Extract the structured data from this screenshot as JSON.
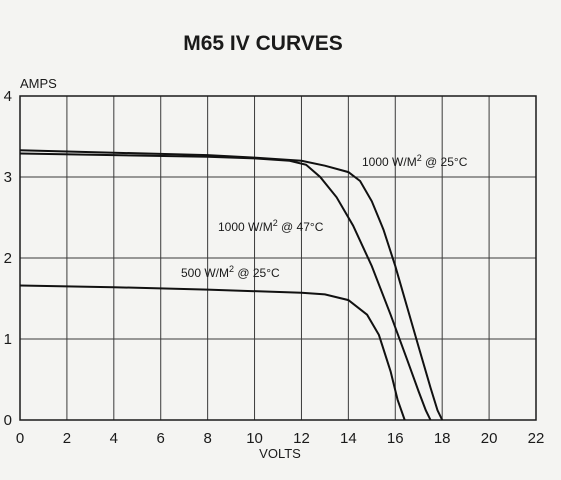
{
  "chart_data": {
    "type": "line",
    "title": "M65 IV CURVES",
    "xlabel": "VOLTS",
    "ylabel": "AMPS",
    "xlim": [
      0,
      22
    ],
    "ylim": [
      0,
      4
    ],
    "x_ticks": [
      "0",
      "2",
      "4",
      "6",
      "8",
      "10",
      "12",
      "14",
      "16",
      "18",
      "20",
      "22"
    ],
    "y_ticks": [
      "0",
      "1",
      "2",
      "3",
      "4"
    ],
    "grid": true,
    "series": [
      {
        "name": "1000 W/M² @ 25°C",
        "label_parts": [
          "1000 W/M",
          "2",
          " @ 25°C"
        ],
        "x": [
          0,
          4,
          8,
          10,
          12,
          13,
          14,
          14.5,
          15,
          15.5,
          16,
          16.5,
          17,
          17.5,
          17.8,
          18
        ],
        "y": [
          3.33,
          3.3,
          3.27,
          3.24,
          3.2,
          3.14,
          3.06,
          2.95,
          2.7,
          2.35,
          1.9,
          1.4,
          0.9,
          0.4,
          0.12,
          0
        ]
      },
      {
        "name": "1000 W/M² @ 47°C",
        "label_parts": [
          "1000 W/M",
          "2",
          " @ 47°C"
        ],
        "x": [
          0,
          4,
          8,
          10,
          11.5,
          12.2,
          12.8,
          13.5,
          14.2,
          15,
          15.8,
          16.5,
          17,
          17.3,
          17.5
        ],
        "y": [
          3.29,
          3.27,
          3.25,
          3.23,
          3.2,
          3.15,
          3.0,
          2.75,
          2.4,
          1.9,
          1.3,
          0.75,
          0.35,
          0.12,
          0
        ]
      },
      {
        "name": "500 W/M² @ 25°C",
        "label_parts": [
          "500 W/M",
          "2",
          " @ 25°C"
        ],
        "x": [
          0,
          4,
          8,
          12,
          13,
          14,
          14.8,
          15.3,
          15.8,
          16.1,
          16.4
        ],
        "y": [
          1.66,
          1.64,
          1.61,
          1.57,
          1.55,
          1.48,
          1.3,
          1.05,
          0.6,
          0.25,
          0
        ]
      }
    ]
  }
}
